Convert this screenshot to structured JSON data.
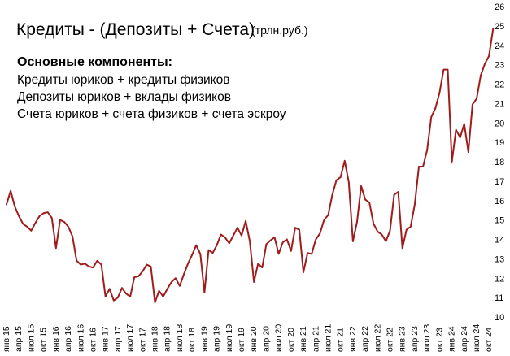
{
  "chart_data": {
    "type": "line",
    "title": "Кредиты - (Депозиты + Счета)",
    "title_unit": "(трлн.руб.)",
    "annotation": {
      "heading": "Основные компоненты:",
      "lines": [
        "Кредиты юриков + кредиты физиков",
        "Депозиты юриков + вклады физиков",
        "Счета юриков + счета физиков + счета эскроу"
      ]
    },
    "ylim": [
      10,
      26
    ],
    "yticks": [
      "10",
      "11",
      "12",
      "13",
      "14",
      "15",
      "16",
      "17",
      "18",
      "19",
      "20",
      "21",
      "22",
      "23",
      "24",
      "25",
      "26"
    ],
    "y_axis_side": "right",
    "grid": false,
    "xticks": [
      "янв 15",
      "апр 15",
      "июл 15",
      "окт 15",
      "янв 16",
      "апр 16",
      "июл 16",
      "окт 16",
      "янв 17",
      "апр 17",
      "июл 17",
      "окт 17",
      "янв 18",
      "апр 18",
      "июл 18",
      "окт 18",
      "янв 19",
      "апр 19",
      "июл 19",
      "окт 19",
      "янв 20",
      "апр 20",
      "июл 20",
      "окт 20",
      "янв 21",
      "апр 21",
      "июл 21",
      "окт 21",
      "янв 22",
      "апр 22",
      "июл 22",
      "окт 22",
      "янв 23",
      "апр 23",
      "июл 23",
      "окт 23",
      "янв 24",
      "апр 24",
      "июл 24",
      "окт 24"
    ],
    "series": [
      {
        "color": "#a01c1c",
        "start": "янв 15",
        "values": [
          15.8,
          16.5,
          15.7,
          15.2,
          14.8,
          14.65,
          14.45,
          14.85,
          15.2,
          15.35,
          15.4,
          15.1,
          13.55,
          15.0,
          14.9,
          14.65,
          14.15,
          12.9,
          12.7,
          12.75,
          12.6,
          12.55,
          12.9,
          12.7,
          11.05,
          11.45,
          10.85,
          11.0,
          11.5,
          11.2,
          11.05,
          12.05,
          12.1,
          12.35,
          12.7,
          12.6,
          10.75,
          11.35,
          11.05,
          11.45,
          11.8,
          12.0,
          11.6,
          12.2,
          12.75,
          13.2,
          13.7,
          13.25,
          11.25,
          13.45,
          13.3,
          13.7,
          14.25,
          14.1,
          13.8,
          14.2,
          14.6,
          14.2,
          14.95,
          13.9,
          11.8,
          12.75,
          12.55,
          13.75,
          13.95,
          14.1,
          13.25,
          13.85,
          14.0,
          13.4,
          14.6,
          14.5,
          12.3,
          13.3,
          13.25,
          14.0,
          14.3,
          15.0,
          15.25,
          16.3,
          17.05,
          17.2,
          18.05,
          16.95,
          13.9,
          14.9,
          16.75,
          16.05,
          15.9,
          14.8,
          14.4,
          14.25,
          13.9,
          14.45,
          16.3,
          16.45,
          13.55,
          14.5,
          14.65,
          15.8,
          17.75,
          17.75,
          18.6,
          20.3,
          20.75,
          21.55,
          22.75,
          22.75,
          18.0,
          19.65,
          19.25,
          19.95,
          18.5,
          20.95,
          21.25,
          22.45,
          23.05,
          23.45,
          24.85
        ]
      }
    ]
  }
}
